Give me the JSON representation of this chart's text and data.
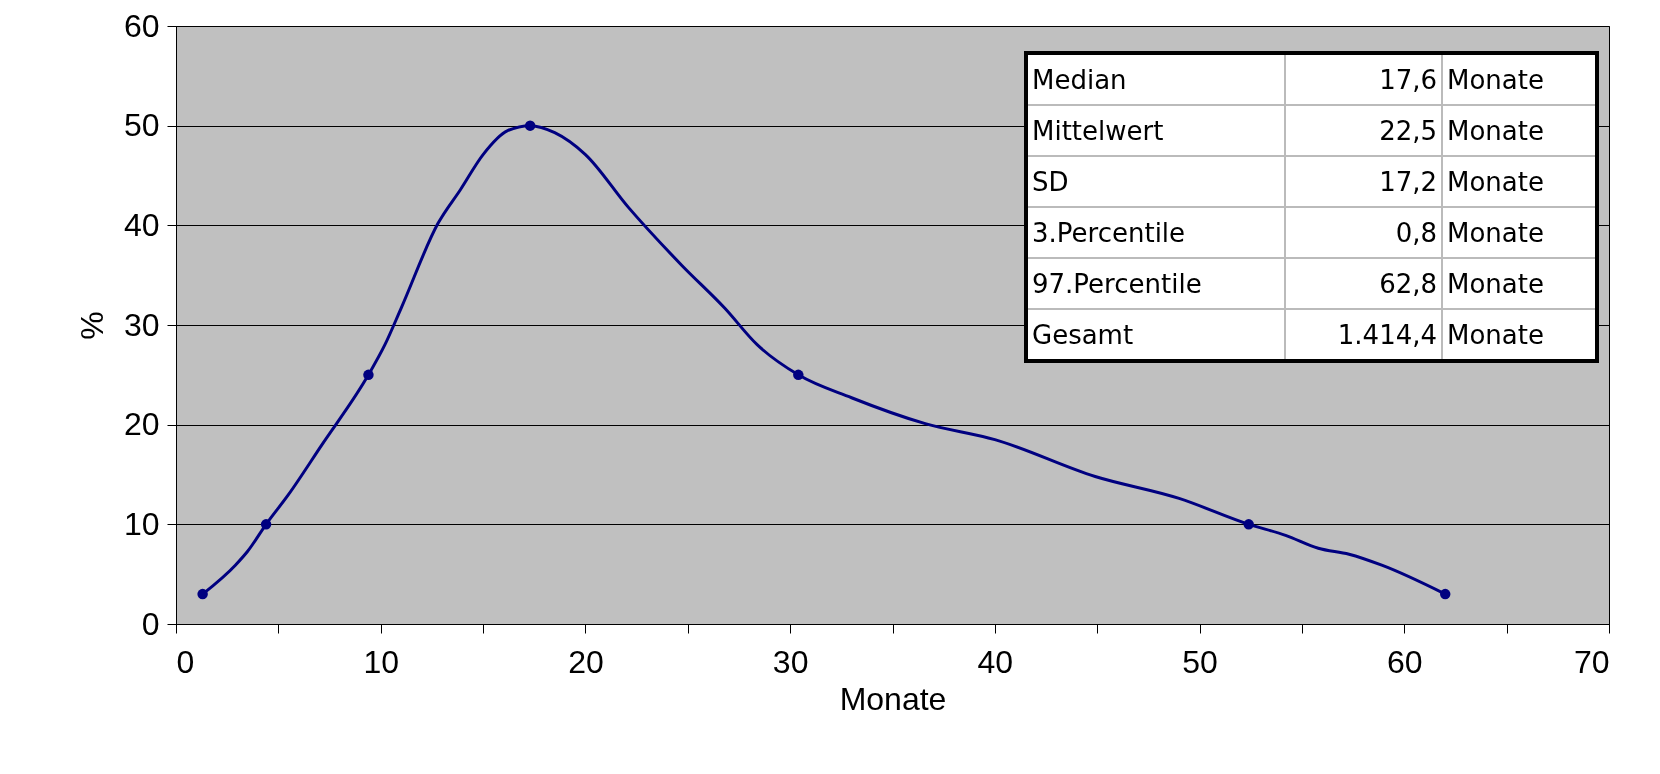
{
  "chart_data": {
    "type": "line",
    "xlabel": "Monate",
    "ylabel": "%",
    "xlim": [
      0,
      70
    ],
    "ylim": [
      0,
      60
    ],
    "xticks": [
      0,
      {
        "value": 5,
        "label": null
      },
      10,
      {
        "value": 15,
        "label": null
      },
      20,
      {
        "value": 25,
        "label": null
      },
      30,
      {
        "value": 35,
        "label": null
      },
      40,
      {
        "value": 45,
        "label": null
      },
      50,
      {
        "value": 55,
        "label": null
      },
      60,
      {
        "value": 65,
        "label": null
      },
      70
    ],
    "yticks": [
      0,
      10,
      20,
      30,
      40,
      50,
      60
    ],
    "grid": "y",
    "series": [
      {
        "color": "#000080",
        "marker": "none",
        "x": [
          1.3,
          2.9,
          3.5,
          4.4,
          5.5,
          7.1,
          9.4,
          10.2,
          11,
          12.8,
          13.9,
          15,
          16.2,
          17.3,
          18.5,
          20,
          22.1,
          24.7,
          26.8,
          28.4,
          30.4,
          33,
          36.6,
          40,
          44.9,
          49,
          52.4,
          54.2,
          55.8,
          57.3,
          58.9,
          62
        ],
        "values": [
          3,
          5.9,
          7.3,
          10,
          13,
          17.9,
          25,
          28,
          31.7,
          40.2,
          43.6,
          47.1,
          49.5,
          50,
          49.3,
          47.1,
          41.8,
          36,
          31.7,
          28,
          25,
          22.7,
          20.1,
          18.5,
          14.8,
          12.6,
          10,
          8.9,
          7.6,
          7,
          5.9,
          3
        ]
      },
      {
        "type": "scatter",
        "color": "#000080",
        "marker": "circle",
        "x": [
          1.3,
          4.4,
          9.4,
          17.3,
          30.4,
          52.4,
          62
        ],
        "values": [
          3,
          10,
          25,
          50,
          25,
          10,
          3
        ]
      }
    ],
    "annotations": [
      "Median",
      "17,6",
      "Monate",
      "Mittelwert",
      "22,5",
      "Monate",
      "SD",
      "17,2",
      "Monate",
      "3.Percentile",
      "0,8",
      "Monate",
      "97.Percentile",
      "62,8",
      "Monate",
      "Gesamt",
      "1.414,4",
      "Monate"
    ]
  }
}
